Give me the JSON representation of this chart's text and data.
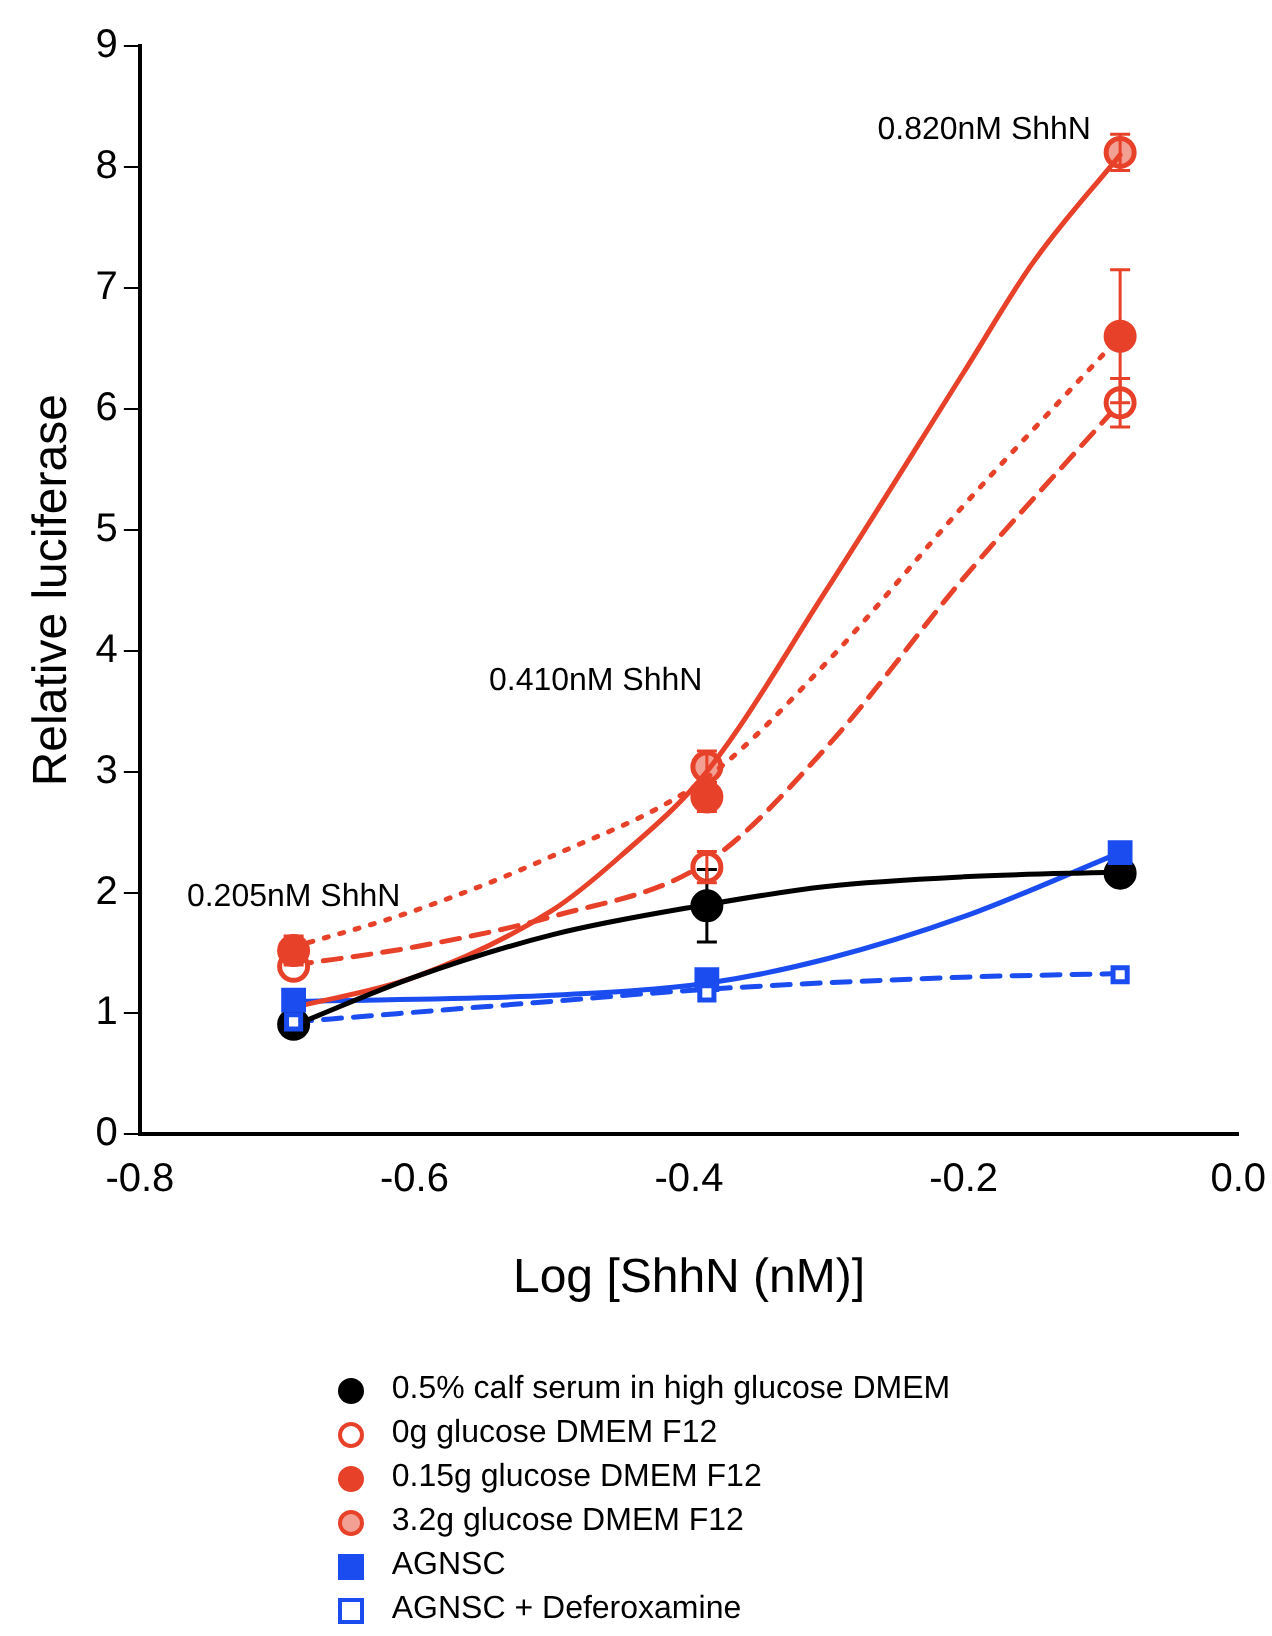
{
  "chart_data": {
    "type": "scatter",
    "xlabel": "Log [ShhN (nM)]",
    "ylabel": "Relative luciferase",
    "xlim": [
      -0.8,
      0
    ],
    "xticks": [
      -0.8,
      -0.6,
      -0.4,
      -0.2,
      {
        "value": 0,
        "label": "0.0"
      }
    ],
    "ylim": [
      0,
      9
    ],
    "yticks": [
      0,
      1,
      2,
      3,
      4,
      5,
      6,
      7,
      8,
      9
    ],
    "grid": false,
    "legend": "bottom",
    "annotations": [
      "0.205nM ShhN",
      "0.410nM ShhN",
      "0.820nM ShhN"
    ],
    "series": [
      {
        "type": "line",
        "color": "#000000",
        "line_style": "solid",
        "marker": "none",
        "x": [
          -0.688,
          -0.6,
          -0.5,
          -0.387,
          -0.3,
          -0.2,
          -0.086
        ],
        "values": [
          0.9,
          1.3,
          1.65,
          1.9,
          2.05,
          2.13,
          2.17
        ]
      },
      {
        "type": "line",
        "color": "#e8412a",
        "line_style": "dashed",
        "marker": "none",
        "x": [
          -0.688,
          -0.6,
          -0.5,
          -0.387,
          -0.3,
          -0.2,
          -0.086
        ],
        "values": [
          1.4,
          1.55,
          1.8,
          2.25,
          3.2,
          4.6,
          6.05
        ]
      },
      {
        "type": "line",
        "color": "#e8412a",
        "line_style": "dotted",
        "marker": "none",
        "x": [
          -0.688,
          -0.6,
          -0.5,
          -0.387,
          -0.3,
          -0.2,
          -0.086
        ],
        "values": [
          1.55,
          1.85,
          2.3,
          2.95,
          3.9,
          5.2,
          6.6
        ]
      },
      {
        "type": "line",
        "color": "#e8412a",
        "line_style": "solid",
        "marker": "none",
        "x": [
          -0.688,
          -0.6,
          -0.5,
          -0.45,
          -0.387,
          -0.3,
          -0.2,
          -0.15,
          -0.086
        ],
        "values": [
          1.05,
          1.3,
          1.85,
          2.3,
          3.0,
          4.5,
          6.3,
          7.2,
          8.1
        ]
      },
      {
        "type": "line",
        "color": "#1a4cf0",
        "line_style": "solid",
        "marker": "none",
        "x": [
          -0.688,
          -0.5,
          -0.387,
          -0.3,
          -0.2,
          -0.086
        ],
        "values": [
          1.1,
          1.15,
          1.25,
          1.45,
          1.8,
          2.33
        ]
      },
      {
        "type": "line",
        "color": "#1a4cf0",
        "line_style": "dashed",
        "marker": "none",
        "x": [
          -0.688,
          -0.5,
          -0.387,
          -0.2,
          -0.086
        ],
        "values": [
          0.93,
          1.1,
          1.2,
          1.3,
          1.33
        ]
      },
      {
        "name": "0.5% calf serum in high glucose DMEM",
        "color": "#000000",
        "marker": "circle",
        "x": [
          -0.688,
          -0.387,
          -0.086
        ],
        "values": [
          0.91,
          1.89,
          2.16
        ],
        "errors": [
          null,
          0.3,
          null
        ]
      },
      {
        "name": "0g glucose DMEM F12",
        "color": "#e8412a",
        "marker": "circle",
        "x": [
          -0.688,
          -0.387,
          -0.086
        ],
        "values": [
          1.39,
          2.21,
          6.05
        ],
        "errors": [
          null,
          0.13,
          0.2
        ]
      },
      {
        "name": "0.15g glucose DMEM F12",
        "color": "#e8412a",
        "marker": "circle",
        "x": [
          -0.688,
          -0.387,
          -0.086
        ],
        "values": [
          1.52,
          2.79,
          6.6
        ],
        "errors": [
          0.12,
          0.12,
          0.55
        ]
      },
      {
        "name": "3.2g glucose DMEM F12",
        "color": "#e8412a",
        "marker": "circle",
        "x": [
          -0.387,
          -0.086
        ],
        "values": [
          3.04,
          8.12
        ],
        "errors": [
          0.13,
          0.15
        ]
      },
      {
        "name": "AGNSC",
        "color": "#1a4cf0",
        "marker": "square",
        "x": [
          -0.688,
          -0.387,
          -0.086
        ],
        "values": [
          1.11,
          1.28,
          2.33
        ]
      },
      {
        "name": "AGNSC + Deferoxamine",
        "color": "#1a4cf0",
        "marker": "square",
        "x": [
          -0.688,
          -0.387,
          -0.086
        ],
        "values": [
          0.93,
          1.17,
          1.32
        ]
      }
    ]
  }
}
